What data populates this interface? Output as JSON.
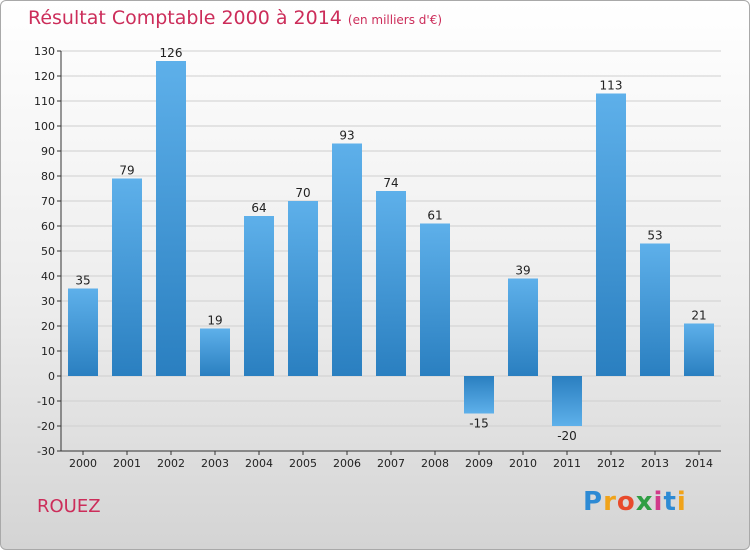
{
  "header": {
    "title": "Résultat Comptable 2000 à 2014",
    "subtitle": "(en milliers d'€)"
  },
  "footer": {
    "commune": "ROUEZ",
    "brand": "Proxiti"
  },
  "colors": {
    "title": "#cc2d5a",
    "bar_light": "#5eb0ea",
    "bar_dark": "#2a7fc0",
    "grid": "#cfcfcf"
  },
  "chart_data": {
    "type": "bar",
    "title": "Résultat Comptable 2000 à 2014",
    "subtitle": "(en milliers d'€)",
    "xlabel": "",
    "ylabel": "",
    "categories": [
      "2000",
      "2001",
      "2002",
      "2003",
      "2004",
      "2005",
      "2006",
      "2007",
      "2008",
      "2009",
      "2010",
      "2011",
      "2012",
      "2013",
      "2014"
    ],
    "values": [
      35,
      79,
      126,
      19,
      64,
      70,
      93,
      74,
      61,
      -15,
      39,
      -20,
      113,
      53,
      21
    ],
    "ylim": [
      -30,
      130
    ],
    "yticks": [
      130,
      120,
      110,
      100,
      90,
      80,
      70,
      60,
      50,
      40,
      30,
      20,
      10,
      0,
      -10,
      -20,
      -30
    ],
    "grid": true
  }
}
